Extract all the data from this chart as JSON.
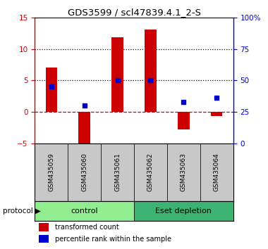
{
  "title": "GDS3599 / scl47839.4.1_2-S",
  "categories": [
    "GSM435059",
    "GSM435060",
    "GSM435061",
    "GSM435062",
    "GSM435063",
    "GSM435064"
  ],
  "red_values": [
    7.0,
    -6.5,
    11.8,
    13.1,
    -2.8,
    -0.7
  ],
  "blue_values": [
    4.0,
    1.0,
    5.0,
    5.0,
    1.6,
    2.2
  ],
  "ylim_left": [
    -5,
    15
  ],
  "ylim_right": [
    0,
    100
  ],
  "yticks_left": [
    -5,
    0,
    5,
    10,
    15
  ],
  "yticks_right": [
    0,
    25,
    50,
    75,
    100
  ],
  "ytick_labels_right": [
    "0",
    "25",
    "50",
    "75",
    "100%"
  ],
  "red_color": "#CC0000",
  "blue_color": "#0000CC",
  "bar_width": 0.35,
  "control_label": "control",
  "depletion_label": "Eset depletion",
  "protocol_label": "protocol",
  "legend_red": "transformed count",
  "legend_blue": "percentile rank within the sample",
  "control_color": "#90EE90",
  "depletion_color": "#3CB371",
  "sample_bg_color": "#C8C8C8",
  "dotted_line_color": "#000000",
  "dashed_line_color": "#CC0000"
}
